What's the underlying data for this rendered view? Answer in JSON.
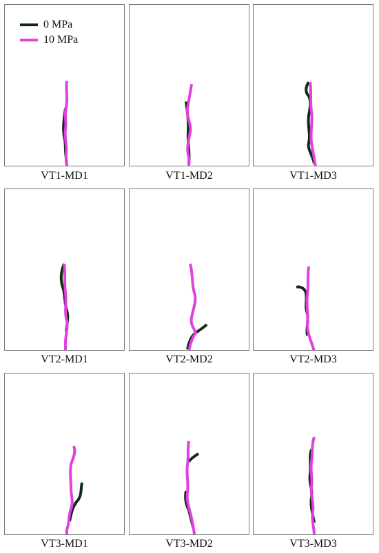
{
  "legend": [
    {
      "label": "0 MPa",
      "color": "#0f2a14"
    },
    {
      "label": "10 MPa",
      "color": "#e040e0"
    }
  ],
  "panels": [
    {
      "label": "VT1-MD1"
    },
    {
      "label": "VT1-MD2"
    },
    {
      "label": "VT1-MD3"
    },
    {
      "label": "VT2-MD1"
    },
    {
      "label": "VT2-MD2"
    },
    {
      "label": "VT2-MD3"
    },
    {
      "label": "VT3-MD1"
    },
    {
      "label": "VT3-MD2"
    },
    {
      "label": "VT3-MD3"
    }
  ]
}
